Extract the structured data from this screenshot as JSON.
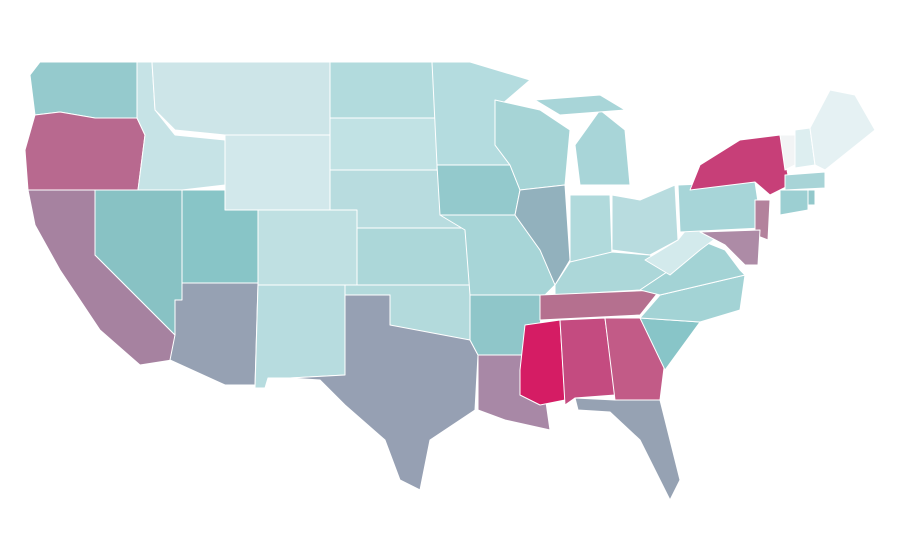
{
  "map": {
    "regions": [
      {
        "color": "#95cacd"
      },
      {
        "color": "#b8698f"
      },
      {
        "color": "#a682a0"
      },
      {
        "color": "#88c2c4"
      },
      {
        "color": "#c6e3e6"
      },
      {
        "color": "#cde5e8"
      },
      {
        "color": "#d2e8eb"
      },
      {
        "color": "#88c5c7"
      },
      {
        "color": "#bfe0e2"
      },
      {
        "color": "#96a1b3"
      },
      {
        "color": "#b7dcdf"
      },
      {
        "color": "#b2dbdd"
      },
      {
        "color": "#c1e2e4"
      },
      {
        "color": "#b8dcdf"
      },
      {
        "color": "#acd7d9"
      },
      {
        "color": "#b3dadc"
      },
      {
        "color": "#96a0b3"
      },
      {
        "color": "#b4dcdf"
      },
      {
        "color": "#93c9cc"
      },
      {
        "color": "#a7d5d7"
      },
      {
        "color": "#8fc6c9"
      },
      {
        "color": "#a888a6"
      },
      {
        "color": "#a6d4d6"
      },
      {
        "color": "#92b1bd"
      },
      {
        "color": "#a8d5d8"
      },
      {
        "color": "#a8d5d8"
      },
      {
        "color": "#b1dadc"
      },
      {
        "color": "#b8dcdf"
      },
      {
        "color": "#acd7d9"
      },
      {
        "color": "#b5708f"
      },
      {
        "color": "#d51c64"
      },
      {
        "color": "#c44b80"
      },
      {
        "color": "#c25b87"
      },
      {
        "color": "#96a2b3"
      },
      {
        "color": "#88c5c8"
      },
      {
        "color": "#a3d3d5"
      },
      {
        "color": "#a3d3d5"
      },
      {
        "color": "#d3eaec"
      },
      {
        "color": "#a7d5d8"
      },
      {
        "color": "#c73f78"
      },
      {
        "color": "#b3829c"
      },
      {
        "color": "#ad8ba6"
      },
      {
        "color": "#f2f4f5"
      },
      {
        "color": "#ddeef0"
      },
      {
        "color": "#e5f1f3"
      },
      {
        "color": "#a8d4d7"
      },
      {
        "color": "#9ccfd2"
      },
      {
        "color": "#93c8cb"
      }
    ]
  }
}
